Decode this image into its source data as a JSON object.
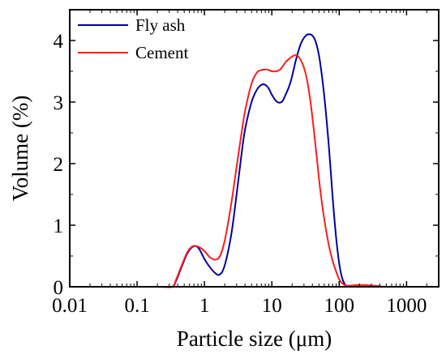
{
  "chart_data": {
    "type": "line",
    "xlabel": "Particle size (μm)",
    "ylabel": "Volume (%)",
    "xscale": "log",
    "xlim": [
      0.01,
      3000
    ],
    "ylim": [
      0,
      4.5
    ],
    "xticks": [
      {
        "value": 0.01,
        "label": "0.01"
      },
      {
        "value": 0.1,
        "label": "0.1"
      },
      {
        "value": 1,
        "label": "1"
      },
      {
        "value": 10,
        "label": "10"
      },
      {
        "value": 100,
        "label": "100"
      },
      {
        "value": 1000,
        "label": "1000"
      }
    ],
    "yticks": [
      {
        "value": 0,
        "label": "0"
      },
      {
        "value": 1,
        "label": "1"
      },
      {
        "value": 2,
        "label": "2"
      },
      {
        "value": 3,
        "label": "3"
      },
      {
        "value": 4,
        "label": "4"
      }
    ],
    "grid": false,
    "legend_position": "top-left",
    "series": [
      {
        "name": "Fly ash",
        "color": "#0000a0",
        "x": [
          0.02,
          0.2,
          0.33,
          0.38,
          0.45,
          0.55,
          0.65,
          0.75,
          0.85,
          1.0,
          1.2,
          1.45,
          1.7,
          2.0,
          2.5,
          3.0,
          3.5,
          4.0,
          5.0,
          6.0,
          7.0,
          8.0,
          9.0,
          10.0,
          11.5,
          13.0,
          14.5,
          16.0,
          18.0,
          20.0,
          23.0,
          27.0,
          32.0,
          37.0,
          42.0,
          47.0,
          52.0,
          60.0,
          70.0,
          80.0,
          90.0,
          100.0,
          110.0,
          120.0,
          130.0,
          140.0,
          200.0,
          500.0,
          2000.0
        ],
        "y": [
          0,
          0,
          0,
          0.1,
          0.3,
          0.53,
          0.64,
          0.66,
          0.6,
          0.45,
          0.32,
          0.22,
          0.2,
          0.35,
          0.85,
          1.5,
          2.1,
          2.55,
          3.0,
          3.2,
          3.28,
          3.28,
          3.22,
          3.12,
          3.02,
          2.99,
          3.02,
          3.12,
          3.25,
          3.42,
          3.7,
          3.95,
          4.08,
          4.1,
          4.05,
          3.9,
          3.65,
          3.1,
          2.3,
          1.45,
          0.8,
          0.38,
          0.15,
          0.05,
          0.01,
          0,
          0,
          0,
          0
        ]
      },
      {
        "name": "Cement",
        "color": "#ff1a1a",
        "x": [
          0.02,
          0.2,
          0.33,
          0.38,
          0.45,
          0.55,
          0.65,
          0.75,
          0.85,
          1.0,
          1.2,
          1.45,
          1.7,
          2.0,
          2.5,
          3.0,
          3.5,
          4.0,
          5.0,
          6.0,
          7.0,
          8.0,
          9.0,
          10.0,
          11.5,
          13.0,
          14.5,
          16.0,
          18.0,
          20.0,
          23.0,
          27.0,
          32.0,
          37.0,
          42.0,
          47.0,
          52.0,
          60.0,
          70.0,
          80.0,
          90.0,
          100.0,
          110.0,
          120.0,
          130.0,
          150.0,
          200.0,
          300.0,
          400.0,
          500.0,
          2000.0
        ],
        "y": [
          0,
          0,
          0,
          0.12,
          0.32,
          0.55,
          0.65,
          0.66,
          0.64,
          0.58,
          0.48,
          0.44,
          0.5,
          0.75,
          1.35,
          1.95,
          2.45,
          2.85,
          3.3,
          3.48,
          3.52,
          3.53,
          3.52,
          3.5,
          3.5,
          3.52,
          3.58,
          3.65,
          3.7,
          3.74,
          3.76,
          3.68,
          3.45,
          3.05,
          2.55,
          2.05,
          1.6,
          1.1,
          0.68,
          0.42,
          0.25,
          0.12,
          0.06,
          0.03,
          0.02,
          0.02,
          0.03,
          0.02,
          0.01,
          0,
          0
        ]
      }
    ]
  }
}
